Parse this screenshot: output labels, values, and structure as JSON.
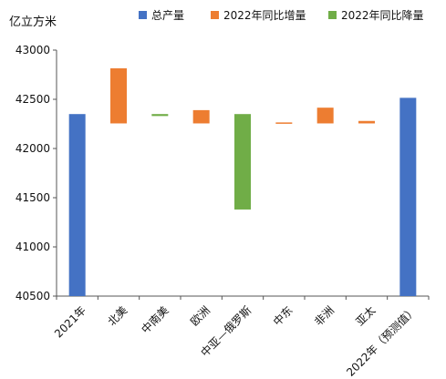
{
  "chart_data": {
    "type": "bar",
    "subtype": "waterfall",
    "unit_label": "亿立方米",
    "legend": [
      {
        "name": "总产量",
        "color": "#4472C4"
      },
      {
        "name": "2022年同比增量",
        "color": "#ED7D31"
      },
      {
        "name": "2022年同比降量",
        "color": "#70AD47"
      }
    ],
    "legend_position": "top",
    "categories": [
      "2021年",
      "北美",
      "中南美",
      "欧洲",
      "中亚—俄罗斯",
      "中东",
      "非洲",
      "亚太",
      "2022年（预测值）"
    ],
    "bars": [
      {
        "category": "2021年",
        "kind": "total",
        "value": 42350
      },
      {
        "category": "北美",
        "kind": "increase",
        "from": 42255,
        "to": 42815
      },
      {
        "category": "中南美",
        "kind": "decrease",
        "from": 42350,
        "to": 42330
      },
      {
        "category": "欧洲",
        "kind": "increase",
        "from": 42255,
        "to": 42390
      },
      {
        "category": "中亚—俄罗斯",
        "kind": "decrease",
        "from": 42350,
        "to": 41380
      },
      {
        "category": "中东",
        "kind": "increase",
        "from": 42255,
        "to": 42265
      },
      {
        "category": "非洲",
        "kind": "increase",
        "from": 42255,
        "to": 42415
      },
      {
        "category": "亚太",
        "kind": "increase",
        "from": 42255,
        "to": 42280
      },
      {
        "category": "2022年（预测值）",
        "kind": "total",
        "value": 42515
      }
    ],
    "yticks": [
      40500,
      41000,
      41500,
      42000,
      42500,
      43000
    ],
    "ylim": [
      40500,
      43000
    ],
    "grid": false
  }
}
